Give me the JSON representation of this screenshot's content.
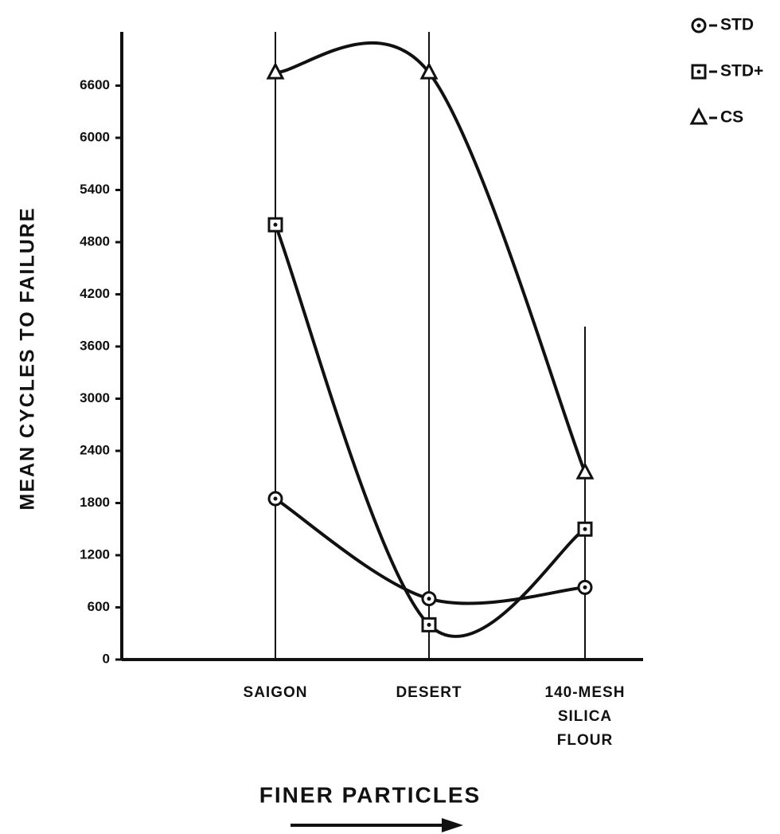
{
  "chart_data": {
    "type": "line",
    "y_label": "MEAN CYCLES TO FAILURE",
    "x_label": "FINER PARTICLES",
    "categories": [
      "SAIGON",
      "DESERT",
      "140-MESH SILICA FLOUR"
    ],
    "series": [
      {
        "name": "STD",
        "color": "#111111",
        "marker": "circle",
        "values": [
          1850,
          700,
          830
        ]
      },
      {
        "name": "STD+",
        "color": "#111111",
        "marker": "square",
        "values": [
          5000,
          400,
          1500
        ]
      },
      {
        "name": "CS",
        "color": "#111111",
        "marker": "triangle",
        "values": [
          6750,
          6750,
          2150
        ]
      }
    ],
    "ylim": [
      0,
      7200
    ],
    "yticks": [
      0,
      600,
      1200,
      1800,
      2400,
      3000,
      3600,
      4200,
      4800,
      5400,
      6000,
      6600
    ],
    "grid": false
  }
}
